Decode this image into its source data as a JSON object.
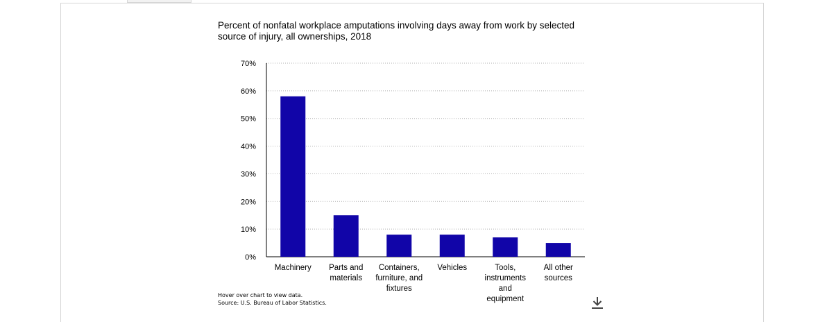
{
  "chart": {
    "title": "Percent of nonfatal workplace amputations involving days away from work by selected source of injury, all ownerships, 2018",
    "hover_note": "Hover over chart to view data.",
    "source_note": "Source: U.S. Bureau of Labor Statistics.",
    "download_icon": "download-icon"
  },
  "chart_data": {
    "type": "bar",
    "title": "Percent of nonfatal workplace amputations involving days away from work by selected source of injury, all ownerships, 2018",
    "categories": [
      [
        "Machinery"
      ],
      [
        "Parts and",
        "materials"
      ],
      [
        "Containers,",
        "furniture, and",
        "fixtures"
      ],
      [
        "Vehicles"
      ],
      [
        "Tools,",
        "instruments",
        "and",
        "equipment"
      ],
      [
        "All other",
        "sources"
      ]
    ],
    "values": [
      58,
      15,
      8,
      8,
      7,
      5
    ],
    "unit": "%",
    "ylim": [
      0,
      70
    ],
    "yticks": [
      "0%",
      "10%",
      "20%",
      "30%",
      "40%",
      "50%",
      "60%",
      "70%"
    ],
    "grid": true,
    "bar_color": "#1105a8"
  }
}
